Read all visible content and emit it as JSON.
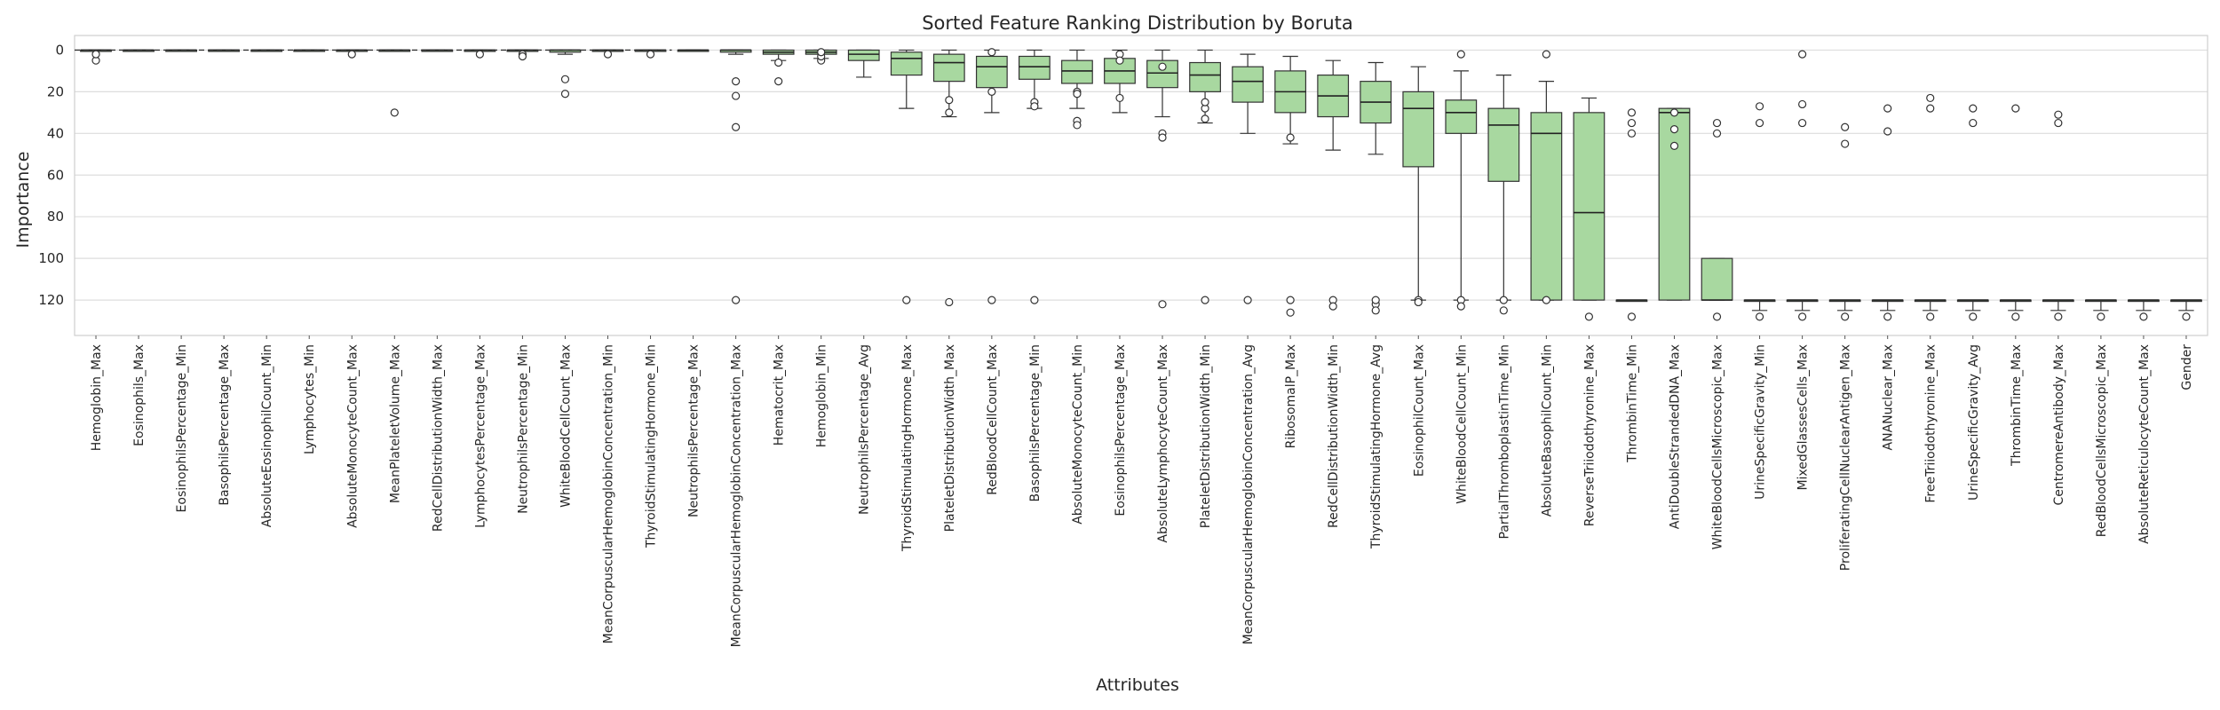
{
  "chart_data": {
    "type": "boxplot",
    "title": "Sorted Feature Ranking Distribution by Boruta",
    "xlabel": "Attributes",
    "ylabel": "Importance",
    "ylim": [
      137,
      -7
    ],
    "y_inverted": true,
    "yticks": [
      0,
      20,
      40,
      60,
      80,
      100,
      120
    ],
    "grid": true,
    "box_color": "#a8d8a0",
    "box_edge_color": "#333333",
    "visible_feature_labels": [
      "Hemoglobin_Max",
      "Eosinophils_Max",
      "EosinophilsPercentage_Min",
      "BasophilsPercentage_Max",
      "AbsoluteEosinophilCount_Min",
      "Lymphocytes_Min",
      "AbsoluteMonocyteCount_Max",
      "MeanPlateletVolume_Max",
      "RedCellDistributionWidth_Max",
      "LymphocytesPercentage_Max",
      "NeutrophilsPercentage_Min",
      "WhiteBloodCellCount_Max",
      "MeanCorpuscularHemoglobinConcentration_Min",
      "ThyroidStimulatingHormone_Min",
      "NeutrophilsPercentage_Max",
      "MeanCorpuscularHemoglobinConcentration_Max",
      "Hematocrit_Max",
      "Hemoglobin_Min",
      "NeutrophilsPercentage_Avg",
      "ThyroidStimulatingHormone_Max",
      "PlateletDistributionWidth_Max",
      "RedBloodCellCount_Max",
      "BasophilsPercentage_Min",
      "AbsoluteMonocyteCount_Min",
      "EosinophilsPercentage_Max",
      "AbsoluteLymphocyteCount_Max",
      "PlateletDistributionWidth_Min",
      "MeanCorpuscularHemoglobinConcentration_Avg",
      "RibosomalP_Max",
      "RedCellDistributionWidth_Min",
      "ThyroidStimulatingHormone_Avg",
      "EosinophilCount_Max",
      "WhiteBloodCellCount_Min",
      "PartialThromboplastinTime_Min",
      "AbsoluteBasophilCount_Min",
      "ReverseTriiodothyronine_Max",
      "ThrombinTime_Min",
      "AntiDoubleStrandedDNA_Max",
      "WhiteBloodCellsMicroscopic_Max",
      "UrineSpecificGravity_Min",
      "MixedGlassesCells_Max",
      "ProliferatingCellNuclearAntigen_Max",
      "ANANuclear_Max",
      "FreeTriiodothyronine_Max",
      "UrineSpecificGravity_Avg",
      "ThrombinTime_Max",
      "CentromereAntibody_Max",
      "RedBloodCellsMicroscopic_Max",
      "AbsoluteReticulocyteCount_Max",
      "Gender"
    ],
    "features": [
      {
        "label": "Hemoglobin_Max",
        "q1": 0,
        "med": 0,
        "q3": 0,
        "wlo": 0,
        "whi": 0,
        "out": [
          5,
          2
        ]
      },
      {
        "label": "Eosinophils_Max",
        "q1": 0,
        "med": 0,
        "q3": 0,
        "wlo": 0,
        "whi": 0,
        "out": []
      },
      {
        "label": "EosinophilsPercentage_Min",
        "q1": 0,
        "med": 0,
        "q3": 0,
        "wlo": 0,
        "whi": 0,
        "out": []
      },
      {
        "label": "BasophilsPercentage_Max",
        "q1": 0,
        "med": 0,
        "q3": 0,
        "wlo": 0,
        "whi": 0,
        "out": []
      },
      {
        "label": "AbsoluteEosinophilCount_Min",
        "q1": 0,
        "med": 0,
        "q3": 0,
        "wlo": 0,
        "whi": 0,
        "out": []
      },
      {
        "label": "Lymphocytes_Min",
        "q1": 0,
        "med": 0,
        "q3": 0,
        "wlo": 0,
        "whi": 0,
        "out": []
      },
      {
        "label": "AbsoluteMonocyteCount_Max",
        "q1": 0,
        "med": 0,
        "q3": 0,
        "wlo": 0,
        "whi": 0,
        "out": [
          2
        ]
      },
      {
        "label": "MeanPlateletVolume_Max",
        "q1": 0,
        "med": 0,
        "q3": 0,
        "wlo": 0,
        "whi": 0,
        "out": [
          30
        ]
      },
      {
        "label": "RedCellDistributionWidth_Max",
        "q1": 0,
        "med": 0,
        "q3": 0,
        "wlo": 0,
        "whi": 0,
        "out": []
      },
      {
        "label": "LymphocytesPercentage_Max",
        "q1": 0,
        "med": 0,
        "q3": 0,
        "wlo": 0,
        "whi": 0,
        "out": [
          2
        ]
      },
      {
        "label": "NeutrophilsPercentage_Min",
        "q1": 0,
        "med": 0,
        "q3": 0,
        "wlo": 0,
        "whi": 0,
        "out": [
          2,
          3
        ]
      },
      {
        "label": "WhiteBloodCellCount_Max",
        "q1": 0,
        "med": 0,
        "q3": 1,
        "wlo": 0,
        "whi": 2,
        "out": [
          14,
          21
        ]
      },
      {
        "label": "MeanCorpuscularHemoglobinConcentration_Min",
        "q1": 0,
        "med": 0,
        "q3": 0,
        "wlo": 0,
        "whi": 0,
        "out": [
          2
        ]
      },
      {
        "label": "ThyroidStimulatingHormone_Min",
        "q1": 0,
        "med": 0,
        "q3": 0,
        "wlo": 0,
        "whi": 0,
        "out": [
          2
        ]
      },
      {
        "label": "NeutrophilsPercentage_Max",
        "q1": 0,
        "med": 0,
        "q3": 0,
        "wlo": 0,
        "whi": 0,
        "out": []
      },
      {
        "label": "MeanCorpuscularHemoglobinConcentration_Max",
        "q1": 0,
        "med": 0,
        "q3": 1,
        "wlo": 0,
        "whi": 2,
        "out": [
          15,
          22,
          37,
          120
        ]
      },
      {
        "label": "Hematocrit_Max",
        "q1": 0,
        "med": 1,
        "q3": 2,
        "wlo": 0,
        "whi": 5,
        "out": [
          6,
          15
        ]
      },
      {
        "label": "Hemoglobin_Min",
        "q1": 0,
        "med": 1,
        "q3": 2,
        "wlo": 0,
        "whi": 4,
        "out": [
          5,
          3,
          1
        ]
      },
      {
        "label": "NeutrophilsPercentage_Avg",
        "q1": 0,
        "med": 2,
        "q3": 5,
        "wlo": 0,
        "whi": 13,
        "out": []
      },
      {
        "label": "ThyroidStimulatingHormone_Max",
        "q1": 1,
        "med": 4,
        "q3": 12,
        "wlo": 0,
        "whi": 28,
        "out": [
          120
        ]
      },
      {
        "label": "PlateletDistributionWidth_Max",
        "q1": 2,
        "med": 6,
        "q3": 15,
        "wlo": 0,
        "whi": 32,
        "out": [
          30,
          24,
          121
        ]
      },
      {
        "label": "RedBloodCellCount_Max",
        "q1": 3,
        "med": 8,
        "q3": 18,
        "wlo": 0,
        "whi": 30,
        "out": [
          20,
          1,
          120
        ]
      },
      {
        "label": "BasophilsPercentage_Min",
        "q1": 3,
        "med": 8,
        "q3": 14,
        "wlo": 0,
        "whi": 28,
        "out": [
          25,
          27,
          120
        ]
      },
      {
        "label": "AbsoluteMonocyteCount_Min",
        "q1": 5,
        "med": 10,
        "q3": 16,
        "wlo": 0,
        "whi": 28,
        "out": [
          20,
          21,
          34,
          36
        ]
      },
      {
        "label": "EosinophilsPercentage_Max",
        "q1": 4,
        "med": 10,
        "q3": 16,
        "wlo": 0,
        "whi": 30,
        "out": [
          23,
          2,
          5
        ]
      },
      {
        "label": "AbsoluteLymphocyteCount_Max",
        "q1": 5,
        "med": 11,
        "q3": 18,
        "wlo": 0,
        "whi": 32,
        "out": [
          8,
          40,
          42,
          122
        ]
      },
      {
        "label": "PlateletDistributionWidth_Min",
        "q1": 6,
        "med": 12,
        "q3": 20,
        "wlo": 0,
        "whi": 35,
        "out": [
          28,
          25,
          33,
          120
        ]
      },
      {
        "label": "MeanCorpuscularHemoglobinConcentration_Avg",
        "q1": 8,
        "med": 15,
        "q3": 25,
        "wlo": 2,
        "whi": 40,
        "out": [
          120
        ]
      },
      {
        "label": "RibosomalP_Max",
        "q1": 10,
        "med": 20,
        "q3": 30,
        "wlo": 3,
        "whi": 45,
        "out": [
          42,
          120,
          126
        ]
      },
      {
        "label": "RedCellDistributionWidth_Min",
        "q1": 12,
        "med": 22,
        "q3": 32,
        "wlo": 5,
        "whi": 48,
        "out": [
          120,
          123
        ]
      },
      {
        "label": "ThyroidStimulatingHormone_Avg",
        "q1": 15,
        "med": 25,
        "q3": 35,
        "wlo": 6,
        "whi": 50,
        "out": [
          122,
          125,
          120
        ]
      },
      {
        "label": "EosinophilCount_Max",
        "q1": 20,
        "med": 28,
        "q3": 56,
        "wlo": 8,
        "whi": 120,
        "out": [
          120,
          121
        ]
      },
      {
        "label": "WhiteBloodCellCount_Min",
        "q1": 24,
        "med": 30,
        "q3": 40,
        "wlo": 10,
        "whi": 120,
        "out": [
          2,
          120,
          123
        ]
      },
      {
        "label": "PartialThromboplastinTime_Min",
        "q1": 28,
        "med": 36,
        "q3": 63,
        "wlo": 12,
        "whi": 120,
        "out": [
          120,
          125
        ]
      },
      {
        "label": "AbsoluteBasophilCount_Min",
        "q1": 30,
        "med": 40,
        "q3": 120,
        "wlo": 15,
        "whi": 120,
        "out": [
          120,
          2
        ]
      },
      {
        "label": "ReverseTriiodothyronine_Max",
        "q1": 30,
        "med": 78,
        "q3": 120,
        "wlo": 23,
        "whi": 120,
        "out": [
          128
        ]
      },
      {
        "label": "ThrombinTime_Min",
        "q1": 120,
        "med": 120,
        "q3": 120,
        "wlo": 120,
        "whi": 120,
        "out": [
          128,
          30,
          35,
          40
        ]
      },
      {
        "label": "AntiDoubleStrandedDNA_Max",
        "q1": 28,
        "med": 30,
        "q3": 120,
        "wlo": 28,
        "whi": 120,
        "out": [
          30,
          38,
          46
        ]
      },
      {
        "label": "WhiteBloodCellsMicroscopic_Max",
        "q1": 100,
        "med": 120,
        "q3": 120,
        "wlo": 100,
        "whi": 120,
        "out": [
          128,
          35,
          40
        ]
      },
      {
        "label": "UrineSpecificGravity_Min",
        "q1": 120,
        "med": 120,
        "q3": 120,
        "wlo": 120,
        "whi": 125,
        "out": [
          128,
          35,
          27
        ]
      },
      {
        "label": "MixedGlassesCells_Max",
        "q1": 120,
        "med": 120,
        "q3": 120,
        "wlo": 120,
        "whi": 125,
        "out": [
          128,
          35,
          2,
          26
        ]
      },
      {
        "label": "ProliferatingCellNuclearAntigen_Max",
        "q1": 120,
        "med": 120,
        "q3": 120,
        "wlo": 120,
        "whi": 125,
        "out": [
          128,
          37,
          45
        ]
      },
      {
        "label": "ANANuclear_Max",
        "q1": 120,
        "med": 120,
        "q3": 120,
        "wlo": 120,
        "whi": 125,
        "out": [
          128,
          39,
          28
        ]
      },
      {
        "label": "FreeTriiodothyronine_Max",
        "q1": 120,
        "med": 120,
        "q3": 120,
        "wlo": 120,
        "whi": 125,
        "out": [
          128,
          23,
          28
        ]
      },
      {
        "label": "UrineSpecificGravity_Avg",
        "q1": 120,
        "med": 120,
        "q3": 120,
        "wlo": 120,
        "whi": 125,
        "out": [
          128,
          35,
          28
        ]
      },
      {
        "label": "ThrombinTime_Max",
        "q1": 120,
        "med": 120,
        "q3": 120,
        "wlo": 120,
        "whi": 125,
        "out": [
          128,
          28
        ]
      },
      {
        "label": "CentromereAntibody_Max",
        "q1": 120,
        "med": 120,
        "q3": 120,
        "wlo": 120,
        "whi": 125,
        "out": [
          128,
          31,
          35
        ]
      },
      {
        "label": "RedBloodCellsMicroscopic_Max",
        "q1": 120,
        "med": 120,
        "q3": 120,
        "wlo": 120,
        "whi": 125,
        "out": [
          128
        ]
      },
      {
        "label": "AbsoluteReticulocyteCount_Max",
        "q1": 120,
        "med": 120,
        "q3": 120,
        "wlo": 120,
        "whi": 125,
        "out": [
          128
        ]
      },
      {
        "label": "Gender",
        "q1": 120,
        "med": 120,
        "q3": 120,
        "wlo": 120,
        "whi": 125,
        "out": [
          128
        ]
      }
    ]
  }
}
